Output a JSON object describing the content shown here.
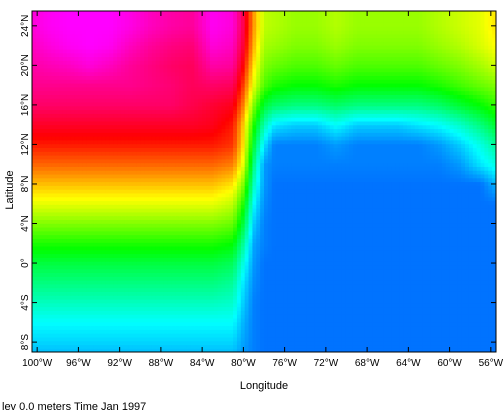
{
  "chart_data": {
    "type": "heatmap",
    "xlabel": "Longitude",
    "ylabel": "Latitude",
    "xlim": [
      -100.5,
      -55.5
    ],
    "ylim": [
      -9,
      25.5
    ],
    "x_ticks": [
      {
        "value": -100,
        "label": "100°W"
      },
      {
        "value": -96,
        "label": "96°W"
      },
      {
        "value": -92,
        "label": "92°W"
      },
      {
        "value": -88,
        "label": "88°W"
      },
      {
        "value": -84,
        "label": "84°W"
      },
      {
        "value": -80,
        "label": "80°W"
      },
      {
        "value": -76,
        "label": "76°W"
      },
      {
        "value": -72,
        "label": "72°W"
      },
      {
        "value": -68,
        "label": "68°W"
      },
      {
        "value": -64,
        "label": "64°W"
      },
      {
        "value": -60,
        "label": "60°W"
      },
      {
        "value": -56,
        "label": "56°W"
      }
    ],
    "y_ticks": [
      {
        "value": -8,
        "label": "8°S"
      },
      {
        "value": -4,
        "label": "4°S"
      },
      {
        "value": 0,
        "label": "0°"
      },
      {
        "value": 4,
        "label": "4°N"
      },
      {
        "value": 8,
        "label": "8°N"
      },
      {
        "value": 12,
        "label": "12°N"
      },
      {
        "value": 16,
        "label": "16°N"
      },
      {
        "value": 20,
        "label": "20°N"
      },
      {
        "value": 24,
        "label": "24°N"
      }
    ],
    "colorscale": "rainbow (blue = low, red/magenta = high)",
    "grid": {
      "x": [
        -100.5,
        -99,
        -97,
        -95,
        -93,
        -91,
        -89,
        -87,
        -85,
        -83,
        -81,
        -80,
        -79,
        -78,
        -77,
        -75,
        -73,
        -71,
        -69,
        -67,
        -65,
        -63,
        -61,
        -59,
        -57,
        -55.5
      ],
      "y": [
        -9,
        -6,
        -4,
        -2,
        0,
        2,
        4,
        6,
        8,
        10,
        12,
        14,
        16,
        18,
        20,
        22,
        24,
        25.5
      ],
      "values": [
        [
          0.15,
          0.15,
          0.15,
          0.15,
          0.15,
          0.15,
          0.15,
          0.15,
          0.15,
          0.15,
          0.15,
          0.12,
          0.1,
          0.09,
          0.09,
          0.09,
          0.09,
          0.09,
          0.09,
          0.09,
          0.09,
          0.09,
          0.09,
          0.09,
          0.09,
          0.09
        ],
        [
          0.2,
          0.2,
          0.2,
          0.2,
          0.2,
          0.2,
          0.2,
          0.2,
          0.2,
          0.2,
          0.2,
          0.14,
          0.1,
          0.09,
          0.09,
          0.09,
          0.09,
          0.09,
          0.09,
          0.09,
          0.09,
          0.09,
          0.09,
          0.09,
          0.09,
          0.09
        ],
        [
          0.25,
          0.25,
          0.25,
          0.25,
          0.25,
          0.25,
          0.25,
          0.25,
          0.25,
          0.25,
          0.24,
          0.16,
          0.1,
          0.09,
          0.09,
          0.09,
          0.09,
          0.09,
          0.09,
          0.09,
          0.09,
          0.09,
          0.09,
          0.09,
          0.09,
          0.09
        ],
        [
          0.3,
          0.3,
          0.3,
          0.3,
          0.3,
          0.3,
          0.3,
          0.3,
          0.3,
          0.3,
          0.28,
          0.18,
          0.11,
          0.09,
          0.09,
          0.09,
          0.09,
          0.09,
          0.09,
          0.09,
          0.09,
          0.09,
          0.09,
          0.09,
          0.09,
          0.09
        ],
        [
          0.35,
          0.35,
          0.35,
          0.35,
          0.35,
          0.35,
          0.35,
          0.35,
          0.35,
          0.35,
          0.33,
          0.22,
          0.12,
          0.09,
          0.09,
          0.09,
          0.09,
          0.09,
          0.09,
          0.09,
          0.09,
          0.09,
          0.09,
          0.09,
          0.09,
          0.09
        ],
        [
          0.42,
          0.42,
          0.42,
          0.42,
          0.42,
          0.42,
          0.42,
          0.42,
          0.42,
          0.42,
          0.4,
          0.28,
          0.13,
          0.1,
          0.09,
          0.09,
          0.09,
          0.09,
          0.09,
          0.09,
          0.09,
          0.09,
          0.09,
          0.09,
          0.09,
          0.09
        ],
        [
          0.5,
          0.5,
          0.5,
          0.5,
          0.5,
          0.5,
          0.5,
          0.5,
          0.5,
          0.5,
          0.48,
          0.35,
          0.16,
          0.1,
          0.09,
          0.09,
          0.09,
          0.09,
          0.09,
          0.09,
          0.09,
          0.09,
          0.09,
          0.09,
          0.09,
          0.09
        ],
        [
          0.58,
          0.58,
          0.58,
          0.58,
          0.58,
          0.58,
          0.58,
          0.58,
          0.58,
          0.58,
          0.55,
          0.42,
          0.2,
          0.11,
          0.09,
          0.09,
          0.09,
          0.09,
          0.09,
          0.09,
          0.09,
          0.09,
          0.09,
          0.09,
          0.09,
          0.09
        ],
        [
          0.65,
          0.65,
          0.65,
          0.65,
          0.65,
          0.65,
          0.65,
          0.65,
          0.65,
          0.65,
          0.62,
          0.5,
          0.25,
          0.12,
          0.09,
          0.09,
          0.09,
          0.09,
          0.09,
          0.09,
          0.09,
          0.09,
          0.09,
          0.09,
          0.09,
          0.14
        ],
        [
          0.72,
          0.72,
          0.72,
          0.72,
          0.72,
          0.72,
          0.72,
          0.72,
          0.72,
          0.72,
          0.7,
          0.58,
          0.3,
          0.12,
          0.1,
          0.1,
          0.1,
          0.1,
          0.1,
          0.1,
          0.1,
          0.1,
          0.1,
          0.12,
          0.18,
          0.22
        ],
        [
          0.78,
          0.78,
          0.78,
          0.78,
          0.78,
          0.78,
          0.78,
          0.78,
          0.78,
          0.78,
          0.76,
          0.62,
          0.36,
          0.18,
          0.1,
          0.1,
          0.1,
          0.12,
          0.1,
          0.1,
          0.1,
          0.1,
          0.12,
          0.16,
          0.22,
          0.28
        ],
        [
          0.83,
          0.83,
          0.83,
          0.83,
          0.83,
          0.83,
          0.83,
          0.83,
          0.83,
          0.82,
          0.78,
          0.64,
          0.42,
          0.26,
          0.18,
          0.16,
          0.16,
          0.2,
          0.16,
          0.16,
          0.16,
          0.18,
          0.2,
          0.24,
          0.3,
          0.36
        ],
        [
          0.88,
          0.88,
          0.88,
          0.88,
          0.88,
          0.88,
          0.88,
          0.88,
          0.86,
          0.84,
          0.82,
          0.7,
          0.5,
          0.36,
          0.32,
          0.3,
          0.3,
          0.32,
          0.3,
          0.3,
          0.3,
          0.3,
          0.32,
          0.36,
          0.4,
          0.44
        ],
        [
          0.91,
          0.91,
          0.91,
          0.91,
          0.91,
          0.91,
          0.9,
          0.89,
          0.87,
          0.88,
          0.87,
          0.75,
          0.58,
          0.46,
          0.42,
          0.4,
          0.4,
          0.42,
          0.4,
          0.4,
          0.4,
          0.4,
          0.42,
          0.45,
          0.48,
          0.5
        ],
        [
          0.93,
          0.94,
          0.95,
          0.97,
          0.95,
          0.92,
          0.9,
          0.88,
          0.87,
          0.93,
          0.92,
          0.8,
          0.62,
          0.5,
          0.48,
          0.46,
          0.46,
          0.48,
          0.46,
          0.46,
          0.46,
          0.46,
          0.48,
          0.5,
          0.53,
          0.56
        ],
        [
          0.95,
          0.97,
          0.99,
          1.0,
          0.99,
          0.95,
          0.92,
          0.9,
          0.89,
          0.97,
          0.95,
          0.84,
          0.66,
          0.53,
          0.52,
          0.5,
          0.5,
          0.52,
          0.5,
          0.5,
          0.5,
          0.5,
          0.52,
          0.54,
          0.57,
          0.6
        ],
        [
          0.97,
          0.99,
          1.0,
          1.0,
          1.0,
          0.98,
          0.95,
          0.93,
          0.92,
          0.99,
          0.97,
          0.86,
          0.68,
          0.55,
          0.54,
          0.52,
          0.52,
          0.54,
          0.52,
          0.52,
          0.52,
          0.52,
          0.54,
          0.56,
          0.58,
          0.62
        ],
        [
          0.97,
          0.99,
          1.0,
          1.0,
          1.0,
          0.98,
          0.95,
          0.93,
          0.92,
          0.99,
          0.97,
          0.86,
          0.68,
          0.55,
          0.54,
          0.52,
          0.52,
          0.54,
          0.52,
          0.52,
          0.52,
          0.52,
          0.54,
          0.56,
          0.58,
          0.62
        ]
      ]
    }
  },
  "caption": "lev 0.0 meters Time Jan 1997"
}
